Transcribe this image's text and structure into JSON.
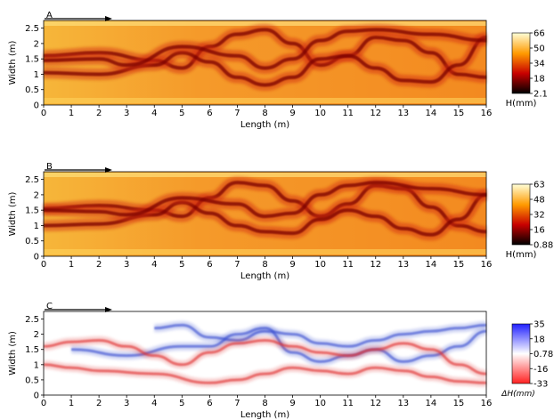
{
  "chart_data": [
    {
      "type": "heatmap",
      "panel_label": "A",
      "xlabel": "Length (m)",
      "ylabel": "Width (m)",
      "xlim": [
        0,
        16
      ],
      "ylim": [
        0,
        2.75
      ],
      "xticks": [
        0,
        1,
        2,
        3,
        4,
        5,
        6,
        7,
        8,
        9,
        10,
        11,
        12,
        13,
        14,
        15,
        16
      ],
      "yticks": [
        0,
        0.5,
        1.0,
        1.5,
        2.0,
        2.5
      ],
      "colorbar": {
        "label": "H(mm)",
        "ticks": [
          "66",
          "50",
          "34",
          "18",
          "2.1"
        ],
        "colormap": "hot"
      },
      "channels": [
        {
          "x": [
            0,
            2,
            4,
            5,
            6,
            7,
            8,
            9,
            10,
            11,
            12,
            13,
            14,
            15,
            16
          ],
          "y": [
            1.6,
            1.7,
            1.45,
            1.2,
            1.9,
            2.3,
            2.45,
            2.0,
            1.3,
            1.6,
            2.2,
            2.1,
            1.7,
            1.0,
            0.9
          ]
        },
        {
          "x": [
            0,
            2,
            4,
            5,
            6,
            7,
            8,
            9,
            10,
            11,
            12,
            13,
            14,
            15,
            16
          ],
          "y": [
            1.05,
            1.0,
            1.3,
            1.7,
            1.4,
            0.9,
            0.65,
            0.9,
            1.5,
            1.6,
            1.2,
            0.8,
            0.75,
            1.3,
            2.2
          ]
        },
        {
          "x": [
            0,
            2,
            3,
            5,
            7,
            8,
            9,
            10,
            11,
            12,
            14,
            16
          ],
          "y": [
            1.45,
            1.5,
            1.3,
            1.9,
            1.6,
            1.2,
            1.5,
            2.1,
            2.4,
            2.45,
            2.3,
            2.1
          ]
        }
      ]
    },
    {
      "type": "heatmap",
      "panel_label": "B",
      "xlabel": "Length (m)",
      "ylabel": "Width (m)",
      "xlim": [
        0,
        16
      ],
      "ylim": [
        0,
        2.75
      ],
      "xticks": [
        0,
        1,
        2,
        3,
        4,
        5,
        6,
        7,
        8,
        9,
        10,
        11,
        12,
        13,
        14,
        15,
        16
      ],
      "yticks": [
        0,
        0.5,
        1.0,
        1.5,
        2.0,
        2.5
      ],
      "colorbar": {
        "label": "H(mm)",
        "ticks": [
          "63",
          "48",
          "32",
          "16",
          "0.88"
        ],
        "colormap": "hot"
      },
      "channels": [
        {
          "x": [
            0,
            2,
            4,
            5,
            6,
            7,
            8,
            9,
            10,
            11,
            12,
            13,
            14,
            15,
            16
          ],
          "y": [
            1.55,
            1.65,
            1.5,
            1.3,
            1.9,
            2.4,
            2.3,
            1.8,
            1.3,
            1.7,
            2.3,
            2.2,
            1.6,
            1.0,
            0.8
          ]
        },
        {
          "x": [
            0,
            2,
            4,
            5,
            6,
            7,
            8,
            9,
            10,
            11,
            12,
            13,
            14,
            15,
            16
          ],
          "y": [
            1.0,
            1.05,
            1.35,
            1.75,
            1.4,
            1.0,
            0.8,
            0.75,
            1.2,
            1.5,
            1.3,
            0.9,
            0.7,
            1.2,
            2.0
          ]
        },
        {
          "x": [
            0,
            2,
            3,
            5,
            7,
            8,
            9,
            10,
            11,
            12,
            14,
            16
          ],
          "y": [
            1.5,
            1.45,
            1.35,
            1.9,
            1.7,
            1.3,
            1.4,
            2.0,
            2.3,
            2.4,
            2.2,
            2.0
          ]
        }
      ]
    },
    {
      "type": "heatmap",
      "panel_label": "C",
      "xlabel": "Length (m)",
      "ylabel": "Width (m)",
      "xlim": [
        0,
        16
      ],
      "ylim": [
        0,
        2.75
      ],
      "xticks": [
        0,
        1,
        2,
        3,
        4,
        5,
        6,
        7,
        8,
        9,
        10,
        11,
        12,
        13,
        14,
        15,
        16
      ],
      "yticks": [
        0,
        0.5,
        1.0,
        1.5,
        2.0,
        2.5
      ],
      "colorbar": {
        "label": "ΔH(mm)",
        "ticks": [
          "35",
          "18",
          "0.78",
          "-16",
          "-33"
        ],
        "colormap": "bwr"
      },
      "channels": [
        {
          "x": [
            1,
            3,
            5,
            6,
            7,
            8,
            9,
            10,
            11,
            12,
            13,
            14,
            15,
            16
          ],
          "y": [
            1.5,
            1.3,
            1.6,
            1.6,
            2.0,
            2.2,
            1.4,
            1.1,
            1.3,
            1.5,
            1.1,
            1.3,
            1.6,
            2.1
          ],
          "sign": "positive"
        },
        {
          "x": [
            4,
            5,
            6,
            7,
            8,
            9,
            10,
            11,
            12,
            13,
            14,
            15,
            16
          ],
          "y": [
            2.2,
            2.3,
            1.9,
            1.8,
            2.1,
            2.0,
            1.7,
            1.6,
            1.8,
            2.0,
            2.1,
            2.2,
            2.3
          ],
          "sign": "positive"
        },
        {
          "x": [
            0,
            1,
            2,
            3,
            4,
            5,
            6,
            7,
            8,
            9,
            10,
            11,
            12,
            13,
            14,
            15,
            16
          ],
          "y": [
            1.6,
            1.75,
            1.8,
            1.6,
            1.3,
            1.0,
            1.4,
            1.7,
            1.8,
            1.6,
            1.4,
            1.3,
            1.5,
            1.7,
            1.5,
            1.0,
            0.7
          ],
          "sign": "negative"
        },
        {
          "x": [
            0,
            1,
            2,
            4,
            6,
            7,
            8,
            9,
            10,
            11,
            12,
            13,
            14,
            15,
            16
          ],
          "y": [
            1.0,
            0.9,
            0.8,
            0.7,
            0.4,
            0.5,
            0.7,
            0.9,
            0.8,
            0.7,
            0.9,
            0.8,
            0.6,
            0.45,
            0.4
          ],
          "sign": "negative"
        }
      ]
    }
  ]
}
